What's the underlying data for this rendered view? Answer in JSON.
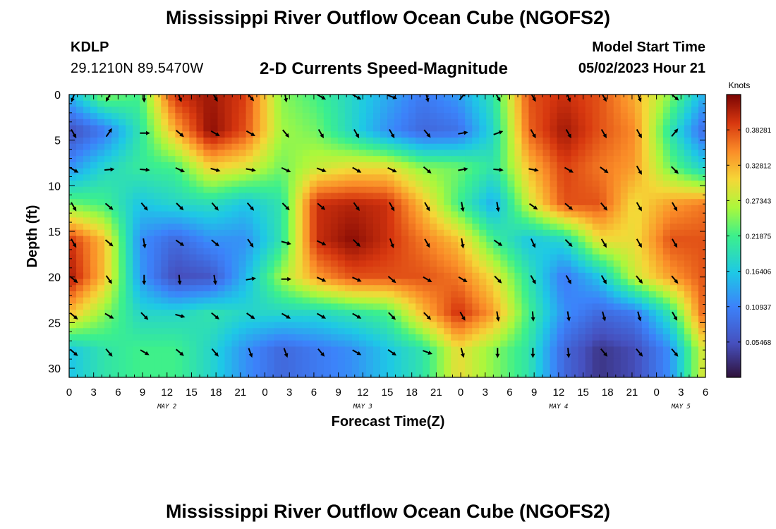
{
  "header": {
    "title": "Mississippi River Outflow Ocean Cube (NGOFS2)",
    "station_id": "KDLP",
    "coordinates": "29.1210N  89.5470W",
    "subtitle": "2-D Currents Speed-Magnitude",
    "model_start_label": "Model Start Time",
    "model_start_value": "05/02/2023 Hour 21"
  },
  "footer": {
    "title": "Mississippi River Outflow Ocean Cube (NGOFS2)"
  },
  "chart_data": {
    "type": "heatmap",
    "title": "2-D Currents Speed-Magnitude",
    "xlabel": "Forecast Time(Z)",
    "ylabel": "Depth (ft)",
    "units": "Knots",
    "x_unit": "hours since May 2 00Z",
    "xlim": [
      0,
      78
    ],
    "ylim": [
      0,
      31
    ],
    "x_ticks": [
      0,
      3,
      6,
      9,
      12,
      15,
      18,
      21,
      24,
      27,
      30,
      33,
      36,
      39,
      42,
      45,
      48,
      51,
      54,
      57,
      60,
      63,
      66,
      69,
      72,
      75,
      78
    ],
    "x_tick_labels": [
      "0",
      "3",
      "6",
      "9",
      "12",
      "15",
      "18",
      "21",
      "0",
      "3",
      "6",
      "9",
      "12",
      "15",
      "18",
      "21",
      "0",
      "3",
      "6",
      "9",
      "12",
      "15",
      "18",
      "21",
      "0",
      "3",
      "6"
    ],
    "y_ticks": [
      0,
      5,
      10,
      15,
      20,
      25,
      30
    ],
    "y_tick_labels": [
      "0",
      "5",
      "10",
      "15",
      "20",
      "25",
      "30"
    ],
    "date_labels": [
      {
        "label": "MAY 2",
        "x": 12
      },
      {
        "label": "MAY 3",
        "x": 36
      },
      {
        "label": "MAY 4",
        "x": 60
      },
      {
        "label": "MAY 5",
        "x": 75
      }
    ],
    "colorbar": {
      "min": 0.0,
      "max": 0.4375,
      "ticks": [
        0.05468,
        0.10937,
        0.16406,
        0.21875,
        0.27343,
        0.32812,
        0.38281
      ],
      "tick_labels": [
        "0.05468",
        "0.10937",
        "0.16406",
        "0.21875",
        "0.27343",
        "0.32812",
        "0.38281"
      ]
    },
    "depth_levels": [
      0,
      4,
      8,
      12,
      16,
      20,
      24,
      28
    ],
    "time_columns": [
      0,
      4.33,
      8.67,
      13,
      17.33,
      21.67,
      26,
      30.33,
      34.67,
      39,
      43.33,
      47.67,
      52,
      56.33,
      60.67,
      65,
      69.33,
      73.67,
      78
    ],
    "speed_grid": [
      [
        0.15,
        0.25,
        0.22,
        0.4,
        0.42,
        0.39,
        0.25,
        0.22,
        0.18,
        0.14,
        0.1,
        0.13,
        0.2,
        0.38,
        0.4,
        0.38,
        0.33,
        0.25,
        0.14
      ],
      [
        0.05,
        0.1,
        0.2,
        0.33,
        0.43,
        0.38,
        0.26,
        0.24,
        0.18,
        0.12,
        0.08,
        0.09,
        0.18,
        0.37,
        0.42,
        0.38,
        0.35,
        0.2,
        0.08
      ],
      [
        0.12,
        0.18,
        0.21,
        0.22,
        0.31,
        0.29,
        0.24,
        0.28,
        0.3,
        0.3,
        0.25,
        0.24,
        0.2,
        0.32,
        0.39,
        0.36,
        0.34,
        0.24,
        0.17
      ],
      [
        0.24,
        0.22,
        0.16,
        0.18,
        0.19,
        0.16,
        0.2,
        0.4,
        0.41,
        0.4,
        0.32,
        0.22,
        0.14,
        0.28,
        0.38,
        0.38,
        0.3,
        0.34,
        0.36
      ],
      [
        0.4,
        0.32,
        0.12,
        0.08,
        0.12,
        0.12,
        0.2,
        0.4,
        0.43,
        0.4,
        0.36,
        0.32,
        0.22,
        0.16,
        0.18,
        0.3,
        0.3,
        0.38,
        0.38
      ],
      [
        0.42,
        0.32,
        0.13,
        0.05,
        0.06,
        0.15,
        0.26,
        0.34,
        0.38,
        0.38,
        0.38,
        0.36,
        0.3,
        0.2,
        0.1,
        0.16,
        0.28,
        0.34,
        0.38
      ],
      [
        0.32,
        0.25,
        0.18,
        0.18,
        0.2,
        0.18,
        0.18,
        0.18,
        0.2,
        0.22,
        0.32,
        0.4,
        0.34,
        0.22,
        0.12,
        0.08,
        0.1,
        0.2,
        0.38
      ],
      [
        0.16,
        0.2,
        0.22,
        0.22,
        0.18,
        0.12,
        0.08,
        0.1,
        0.12,
        0.16,
        0.2,
        0.3,
        0.25,
        0.2,
        0.08,
        0.03,
        0.05,
        0.12,
        0.3
      ]
    ],
    "arrow_times": [
      0,
      4.33,
      8.67,
      13,
      17.33,
      21.67,
      26,
      30.33,
      34.67,
      39,
      43.33,
      47.67,
      52,
      56.33,
      60.67,
      65,
      69.33,
      73.67,
      78
    ],
    "arrow_depths": [
      0,
      4,
      8,
      12,
      16,
      20,
      24,
      28
    ],
    "arrow_directions": [
      [
        200,
        210,
        180,
        160,
        150,
        140,
        170,
        120,
        120,
        110,
        165,
        40,
        150,
        150,
        160,
        150,
        160,
        130,
        160
      ],
      [
        150,
        35,
        90,
        130,
        120,
        120,
        140,
        150,
        150,
        150,
        140,
        80,
        70,
        150,
        150,
        150,
        150,
        40,
        30
      ],
      [
        120,
        85,
        95,
        115,
        105,
        100,
        115,
        110,
        120,
        115,
        130,
        80,
        95,
        100,
        120,
        125,
        150,
        135,
        30
      ],
      [
        150,
        130,
        140,
        135,
        140,
        140,
        135,
        130,
        145,
        150,
        150,
        170,
        170,
        125,
        130,
        140,
        150,
        150,
        140
      ],
      [
        150,
        130,
        170,
        125,
        130,
        145,
        105,
        115,
        135,
        160,
        150,
        170,
        125,
        155,
        135,
        150,
        150,
        150,
        150
      ],
      [
        130,
        145,
        180,
        175,
        170,
        80,
        90,
        115,
        115,
        130,
        120,
        120,
        135,
        150,
        150,
        150,
        140,
        140,
        150
      ],
      [
        130,
        120,
        135,
        105,
        130,
        125,
        120,
        120,
        120,
        135,
        135,
        150,
        170,
        175,
        170,
        165,
        165,
        150,
        130
      ],
      [
        130,
        140,
        120,
        130,
        140,
        160,
        160,
        140,
        120,
        125,
        110,
        165,
        180,
        180,
        175,
        140,
        140,
        140,
        160
      ]
    ]
  }
}
